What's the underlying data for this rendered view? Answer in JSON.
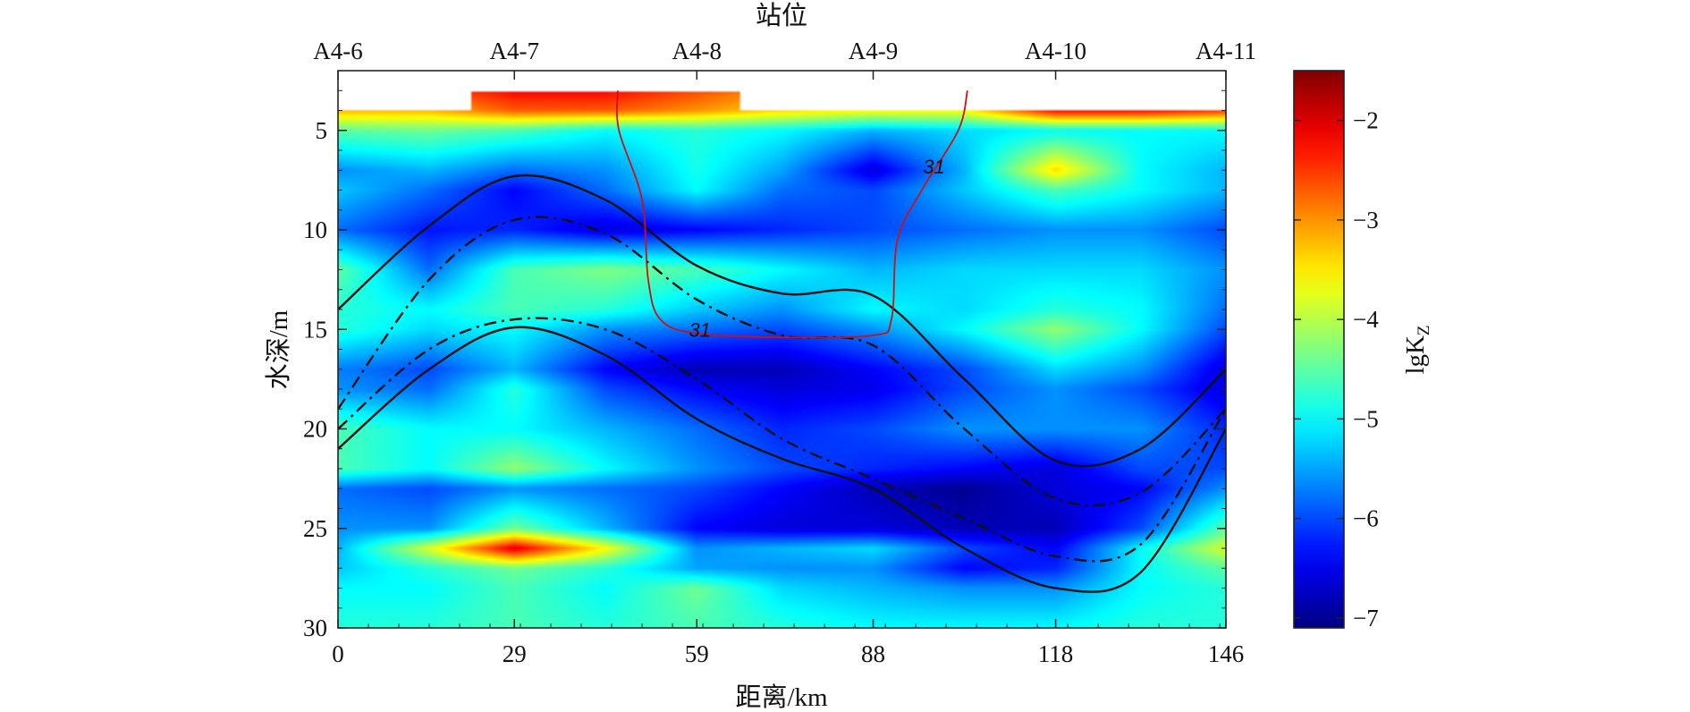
{
  "chart_data": {
    "type": "heatmap",
    "title": "",
    "xlabel": "距离/km",
    "ylabel": "水深/m",
    "top_axis_label": "站位",
    "colorbar_label": "lgK",
    "colorbar_label_sub": "Z",
    "x_ticks": [
      {
        "value": 0,
        "label": "0"
      },
      {
        "value": 29,
        "label": "29"
      },
      {
        "value": 59,
        "label": "59"
      },
      {
        "value": 88,
        "label": "88"
      },
      {
        "value": 118,
        "label": "118"
      },
      {
        "value": 146,
        "label": "146"
      }
    ],
    "top_ticks": [
      {
        "value": 0,
        "label": "A4-6"
      },
      {
        "value": 29,
        "label": "A4-7"
      },
      {
        "value": 59,
        "label": "A4-8"
      },
      {
        "value": 88,
        "label": "A4-9"
      },
      {
        "value": 118,
        "label": "A4-10"
      },
      {
        "value": 146,
        "label": "A4-11"
      }
    ],
    "y_ticks": [
      {
        "value": 5,
        "label": "5"
      },
      {
        "value": 10,
        "label": "10"
      },
      {
        "value": 15,
        "label": "15"
      },
      {
        "value": 20,
        "label": "20"
      },
      {
        "value": 25,
        "label": "25"
      },
      {
        "value": 30,
        "label": "30"
      }
    ],
    "colorbar_ticks": [
      {
        "value": -2,
        "label": "−2"
      },
      {
        "value": -3,
        "label": "−3"
      },
      {
        "value": -4,
        "label": "−4"
      },
      {
        "value": -5,
        "label": "−5"
      },
      {
        "value": -6,
        "label": "−6"
      },
      {
        "value": -7,
        "label": "−7"
      }
    ],
    "xlim": [
      0,
      146
    ],
    "ylim": [
      2,
      30
    ],
    "y_inverted": true,
    "clim": [
      -7.1,
      -1.5
    ],
    "colormap": "jet",
    "field": {
      "x": [
        0,
        15,
        29,
        44,
        59,
        73,
        88,
        103,
        118,
        132,
        146
      ],
      "y": [
        3,
        4,
        5,
        7,
        8,
        10,
        12,
        14,
        15,
        17,
        18,
        20,
        22,
        23,
        25,
        26,
        27,
        28,
        30
      ],
      "top_data_depth": [
        4,
        4,
        3,
        3,
        3,
        4,
        4,
        4,
        4,
        4,
        4
      ],
      "values": [
        [
          -2.6,
          -2.6,
          -2.2,
          -2.2,
          -2.6,
          -3.0,
          -3.0,
          -3.0,
          -1.9,
          -2.0,
          -2.3
        ],
        [
          -3.2,
          -3.2,
          -2.7,
          -2.7,
          -3.0,
          -3.4,
          -3.6,
          -3.6,
          -2.2,
          -2.2,
          -2.5
        ],
        [
          -4.5,
          -4.4,
          -4.6,
          -5.0,
          -4.8,
          -5.0,
          -5.4,
          -5.2,
          -5.0,
          -5.0,
          -5.0
        ],
        [
          -5.6,
          -5.4,
          -5.8,
          -5.6,
          -4.9,
          -5.5,
          -6.6,
          -5.4,
          -3.4,
          -5.0,
          -5.4
        ],
        [
          -5.3,
          -5.8,
          -6.4,
          -5.8,
          -5.0,
          -5.8,
          -6.0,
          -5.3,
          -4.6,
          -5.0,
          -5.4
        ],
        [
          -5.8,
          -6.3,
          -6.2,
          -6.6,
          -6.4,
          -6.2,
          -6.0,
          -5.8,
          -5.6,
          -5.6,
          -6.0
        ],
        [
          -4.5,
          -5.8,
          -4.6,
          -4.3,
          -4.6,
          -5.0,
          -5.4,
          -5.2,
          -5.2,
          -5.2,
          -5.6
        ],
        [
          -4.8,
          -5.0,
          -4.6,
          -4.8,
          -5.3,
          -5.6,
          -5.0,
          -5.2,
          -4.8,
          -5.0,
          -5.8
        ],
        [
          -4.8,
          -5.2,
          -5.0,
          -5.6,
          -5.8,
          -6.0,
          -5.6,
          -5.0,
          -4.2,
          -5.0,
          -6.0
        ],
        [
          -5.7,
          -6.0,
          -5.4,
          -6.4,
          -6.8,
          -6.8,
          -6.4,
          -6.0,
          -5.2,
          -5.6,
          -6.6
        ],
        [
          -5.6,
          -5.8,
          -4.8,
          -6.0,
          -6.4,
          -6.6,
          -6.5,
          -6.0,
          -5.6,
          -6.0,
          -6.6
        ],
        [
          -4.6,
          -5.0,
          -5.0,
          -5.4,
          -5.8,
          -6.2,
          -6.0,
          -5.6,
          -5.6,
          -5.6,
          -6.2
        ],
        [
          -4.6,
          -5.0,
          -4.2,
          -5.0,
          -5.6,
          -6.0,
          -6.2,
          -6.4,
          -6.6,
          -6.0,
          -6.0
        ],
        [
          -5.8,
          -6.0,
          -5.6,
          -5.8,
          -6.0,
          -6.4,
          -6.8,
          -7.0,
          -6.6,
          -6.4,
          -5.6
        ],
        [
          -5.6,
          -5.6,
          -4.4,
          -5.4,
          -6.4,
          -6.6,
          -6.6,
          -6.8,
          -6.8,
          -6.0,
          -4.5
        ],
        [
          -5.4,
          -3.8,
          -2.0,
          -3.6,
          -5.6,
          -5.4,
          -5.2,
          -6.0,
          -6.4,
          -5.0,
          -3.8
        ],
        [
          -5.3,
          -4.8,
          -4.4,
          -4.8,
          -5.5,
          -5.6,
          -5.6,
          -6.4,
          -6.2,
          -5.0,
          -4.5
        ],
        [
          -5.0,
          -5.0,
          -4.6,
          -5.0,
          -4.4,
          -5.2,
          -5.4,
          -5.6,
          -5.6,
          -5.0,
          -4.8
        ],
        [
          -4.8,
          -4.8,
          -4.6,
          -4.8,
          -4.6,
          -4.8,
          -5.0,
          -5.0,
          -5.0,
          -4.8,
          -4.8
        ]
      ]
    },
    "black_curves": [
      {
        "style": "solid",
        "x": [
          0,
          15,
          29,
          44,
          59,
          73,
          88,
          103,
          118,
          132,
          146
        ],
        "y": [
          14,
          9.8,
          7.3,
          8.5,
          11.8,
          13.2,
          13.3,
          17.5,
          21.6,
          21.0,
          17.0
        ]
      },
      {
        "style": "dashdot",
        "x": [
          0,
          15,
          29,
          44,
          59,
          73,
          88,
          103,
          118,
          132,
          146
        ],
        "y": [
          19,
          12.5,
          9.5,
          10.2,
          13.5,
          15.3,
          15.8,
          20.0,
          23.5,
          23.2,
          19.0
        ]
      },
      {
        "style": "dashdot",
        "x": [
          0,
          15,
          29,
          44,
          59,
          73,
          88,
          103,
          118,
          132,
          146
        ],
        "y": [
          20,
          16.0,
          14.5,
          15.0,
          17.5,
          20.5,
          22.5,
          24.5,
          26.4,
          25.8,
          19.0
        ]
      },
      {
        "style": "solid",
        "x": [
          0,
          15,
          29,
          44,
          59,
          73,
          88,
          103,
          118,
          132,
          146
        ],
        "y": [
          21,
          17.0,
          14.9,
          16.3,
          19.5,
          21.5,
          23.0,
          26.0,
          28.0,
          27.2,
          20.0
        ]
      }
    ],
    "isoline": {
      "label": "31",
      "color": "#d01010",
      "points": [
        [
          46,
          3.0
        ],
        [
          46.2,
          5.0
        ],
        [
          50,
          8.5
        ],
        [
          51,
          12.5
        ],
        [
          53,
          14.5
        ],
        [
          59,
          15.2
        ],
        [
          73,
          15.4
        ],
        [
          88,
          15.3
        ],
        [
          91,
          14.5
        ],
        [
          92,
          10.5
        ],
        [
          96,
          8.0
        ],
        [
          102,
          5.0
        ],
        [
          103.5,
          3.0
        ]
      ],
      "label_positions": [
        [
          59.5,
          15.0
        ],
        [
          98,
          6.8
        ]
      ]
    }
  }
}
